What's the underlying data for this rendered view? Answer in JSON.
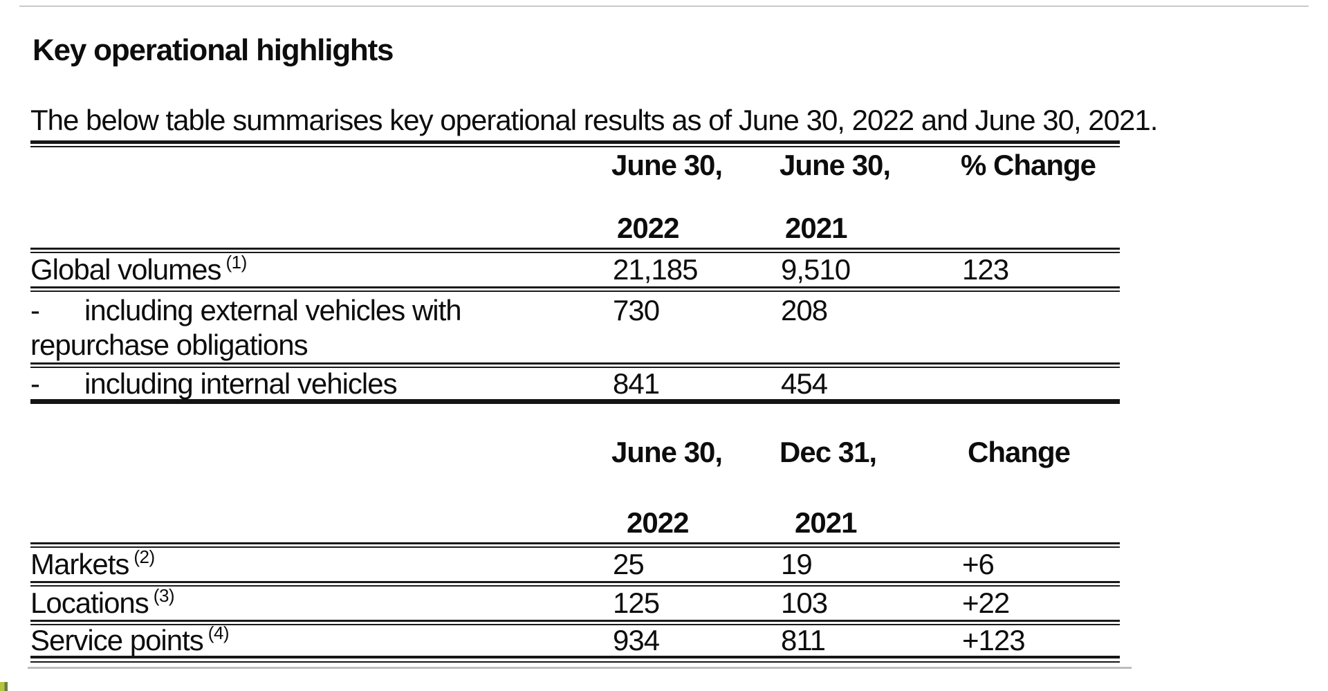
{
  "page": {
    "title": "Key operational highlights",
    "intro": "The below table summarises key operational results as of June 30, 2022 and June 30, 2021."
  },
  "table1": {
    "header": {
      "col2_top": "June 30,",
      "col3_top": "June 30,",
      "col4_top": "% Change",
      "col2_year": "2022",
      "col3_year": "2021"
    },
    "rows": [
      {
        "label": "Global volumes",
        "sup": "(1)",
        "v_col2": "21,185",
        "v_col3": "9,510",
        "v_col4": "123"
      },
      {
        "dash": "-",
        "label": "including external vehicles with",
        "label_line2": "repurchase obligations",
        "v_col2": "730",
        "v_col3": "208",
        "v_col4": ""
      },
      {
        "dash": "-",
        "label": "including internal vehicles",
        "v_col2": "841",
        "v_col3": "454",
        "v_col4": ""
      }
    ]
  },
  "table2": {
    "header": {
      "col2_top": "June 30,",
      "col3_top": "Dec 31,",
      "col4_top": "Change",
      "col2_year": "2022",
      "col3_year": "2021"
    },
    "rows": [
      {
        "label": "Markets",
        "sup": "(2)",
        "v_col2": "25",
        "v_col3": "19",
        "v_col4": "+6"
      },
      {
        "label": "Locations",
        "sup": "(3)",
        "v_col2": "125",
        "v_col3": "103",
        "v_col4": "+22"
      },
      {
        "label": "Service points",
        "sup": "(4)",
        "v_col2": "934",
        "v_col3": "811",
        "v_col4": "+123"
      }
    ]
  }
}
